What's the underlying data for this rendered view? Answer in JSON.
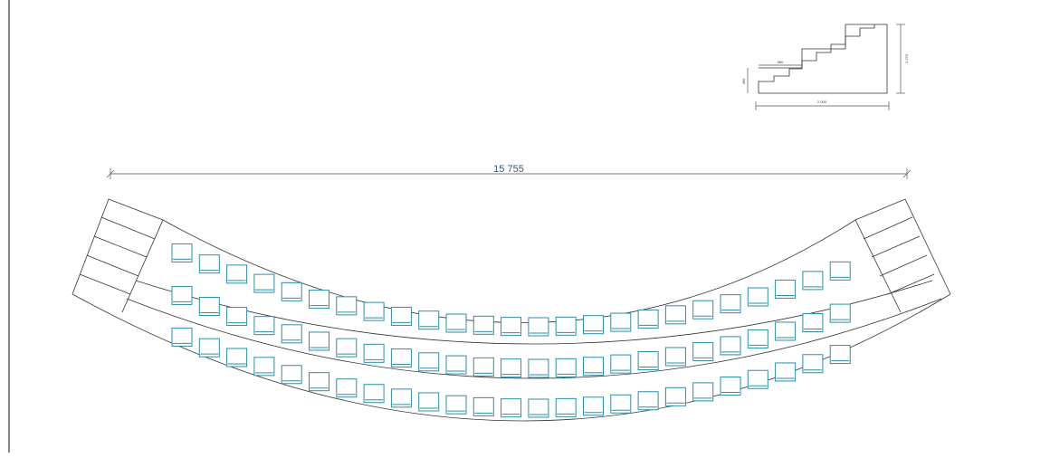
{
  "main_dimension": "15 755",
  "section": {
    "tread": "560",
    "riser": "450",
    "width": "2 000",
    "height": "1 270"
  }
}
